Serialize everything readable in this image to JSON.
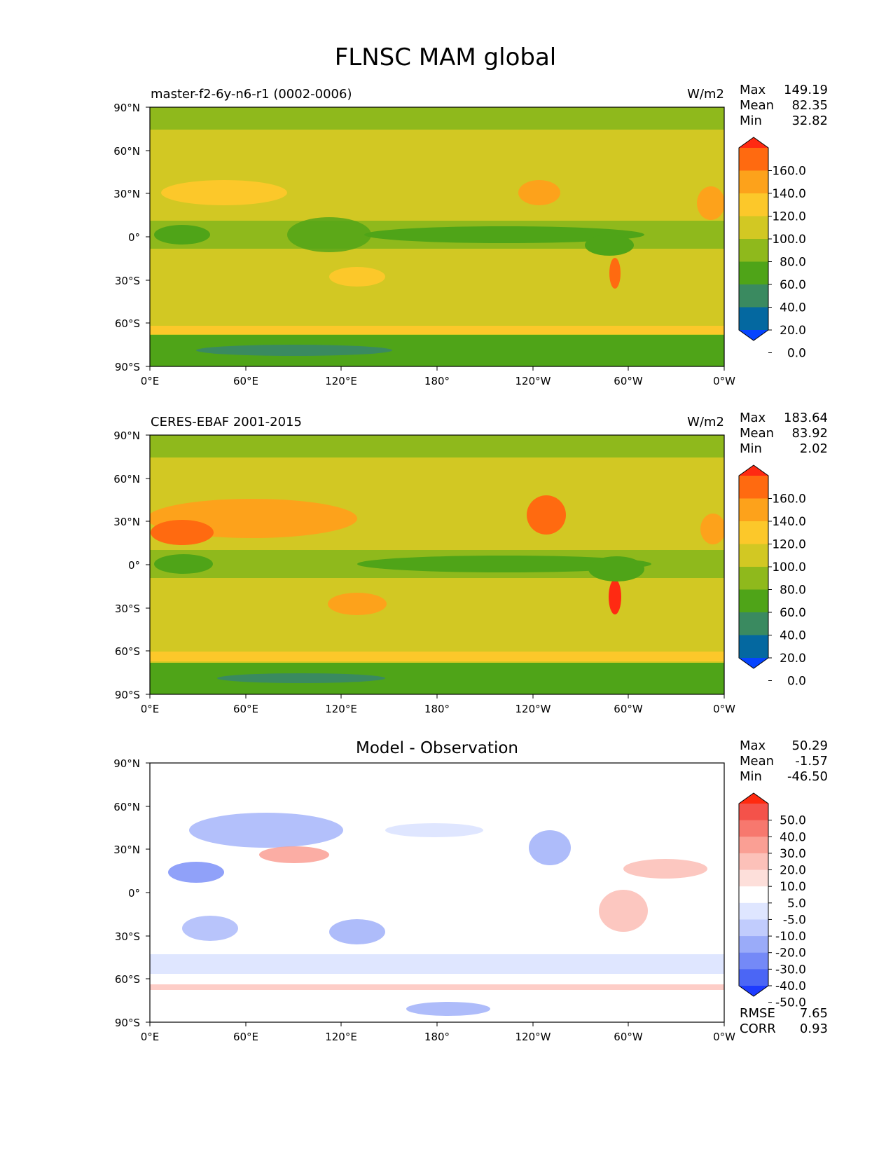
{
  "figure": {
    "title": "FLNSC MAM global"
  },
  "axes": {
    "lat_ticks": [
      "90°N",
      "60°N",
      "30°N",
      "0°",
      "30°S",
      "60°S",
      "90°S"
    ],
    "lon_ticks": [
      "0°E",
      "60°E",
      "120°E",
      "180°",
      "120°W",
      "60°W",
      "0°W"
    ]
  },
  "chart_data": [
    {
      "type": "heatmap",
      "panel": "test",
      "title": "master-f2-6y-n6-r1 (0002-0006)",
      "units": "W/m2",
      "stats": {
        "labels": [
          "Max",
          "Mean",
          "Min"
        ],
        "values": [
          "149.19",
          "82.35",
          "32.82"
        ]
      },
      "colorbar": {
        "levels": [
          "160.0",
          "140.0",
          "120.0",
          "100.0",
          "80.0",
          "60.0",
          "40.0",
          "20.0",
          "0.0"
        ],
        "colors": [
          "#ff2a12",
          "#ff6a10",
          "#fda21b",
          "#fcc82a",
          "#d2c823",
          "#8fb91c",
          "#4fa418",
          "#3a8a60",
          "#0468a0",
          "#0544ff"
        ]
      }
    },
    {
      "type": "heatmap",
      "panel": "reference",
      "title": "CERES-EBAF 2001-2015",
      "units": "W/m2",
      "stats": {
        "labels": [
          "Max",
          "Mean",
          "Min"
        ],
        "values": [
          "183.64",
          "83.92",
          "2.02"
        ]
      },
      "colorbar": {
        "levels": [
          "160.0",
          "140.0",
          "120.0",
          "100.0",
          "80.0",
          "60.0",
          "40.0",
          "20.0",
          "0.0"
        ],
        "colors": [
          "#ff2a12",
          "#ff6a10",
          "#fda21b",
          "#fcc82a",
          "#d2c823",
          "#8fb91c",
          "#4fa418",
          "#3a8a60",
          "#0468a0",
          "#0544ff"
        ]
      }
    },
    {
      "type": "heatmap",
      "panel": "difference",
      "title": "Model - Observation",
      "stats": {
        "labels": [
          "Max",
          "Mean",
          "Min"
        ],
        "values": [
          "50.29",
          "-1.57",
          "-46.50"
        ]
      },
      "metrics": {
        "labels": [
          "RMSE",
          "CORR"
        ],
        "values": [
          "7.65",
          "0.93"
        ]
      },
      "colorbar": {
        "levels": [
          "50.0",
          "40.0",
          "30.0",
          "20.0",
          "10.0",
          "5.0",
          "-5.0",
          "-10.0",
          "-20.0",
          "-30.0",
          "-40.0",
          "-50.0"
        ],
        "colors": [
          "#ff2a0f",
          "#f4524a",
          "#f7786e",
          "#fa9f94",
          "#fcc1b9",
          "#fddfda",
          "#ffffff",
          "#dfe6ff",
          "#c1ccfd",
          "#9aabf9",
          "#7489f7",
          "#4b66f5",
          "#1d3bff"
        ]
      }
    }
  ]
}
